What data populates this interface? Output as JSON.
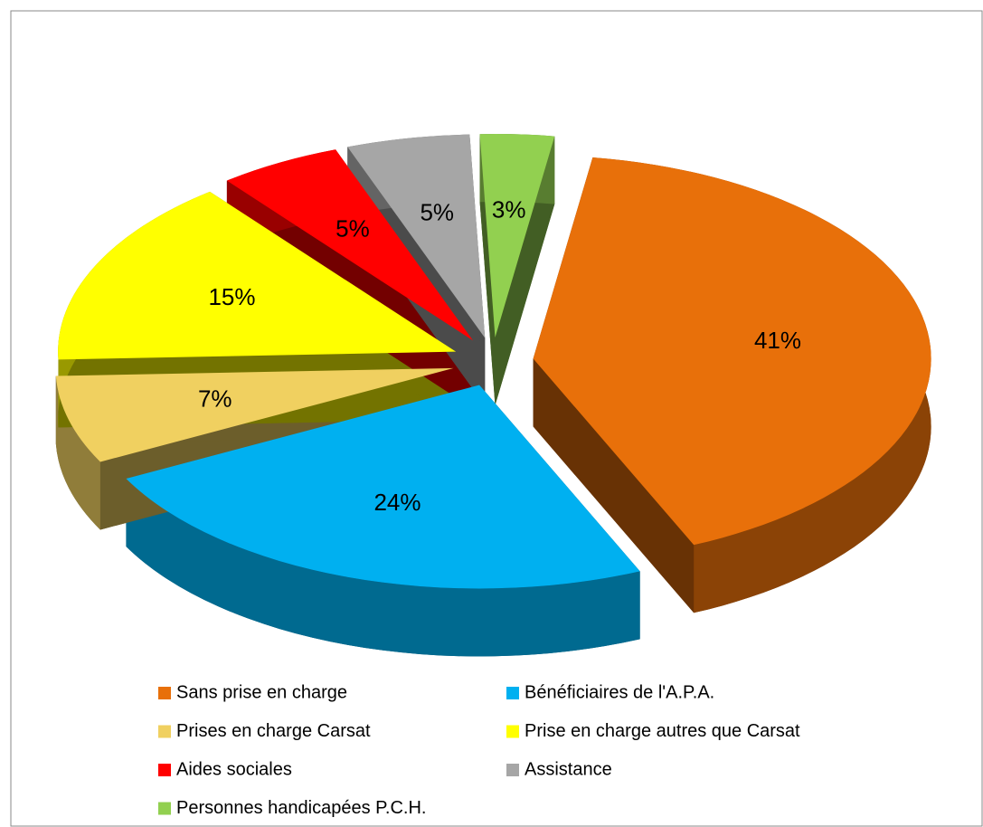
{
  "chart_data": {
    "type": "pie",
    "categories": [
      "Sans prise en charge",
      "Bénéficiaires de l'A.P.A.",
      "Prises en charge Carsat",
      "Prise en charge autres que Carsat",
      "Aides sociales",
      "Assistance",
      "Personnes handicapées P.C.H."
    ],
    "values": [
      41,
      24,
      7,
      15,
      5,
      5,
      3
    ],
    "value_labels": [
      "41%",
      "24%",
      "7%",
      "15%",
      "5%",
      "5%",
      "3%"
    ],
    "colors": [
      "#e8700a",
      "#00b0f0",
      "#f0d060",
      "#ffff00",
      "#ff0000",
      "#a6a6a6",
      "#92d050"
    ],
    "legend": "bottom"
  }
}
